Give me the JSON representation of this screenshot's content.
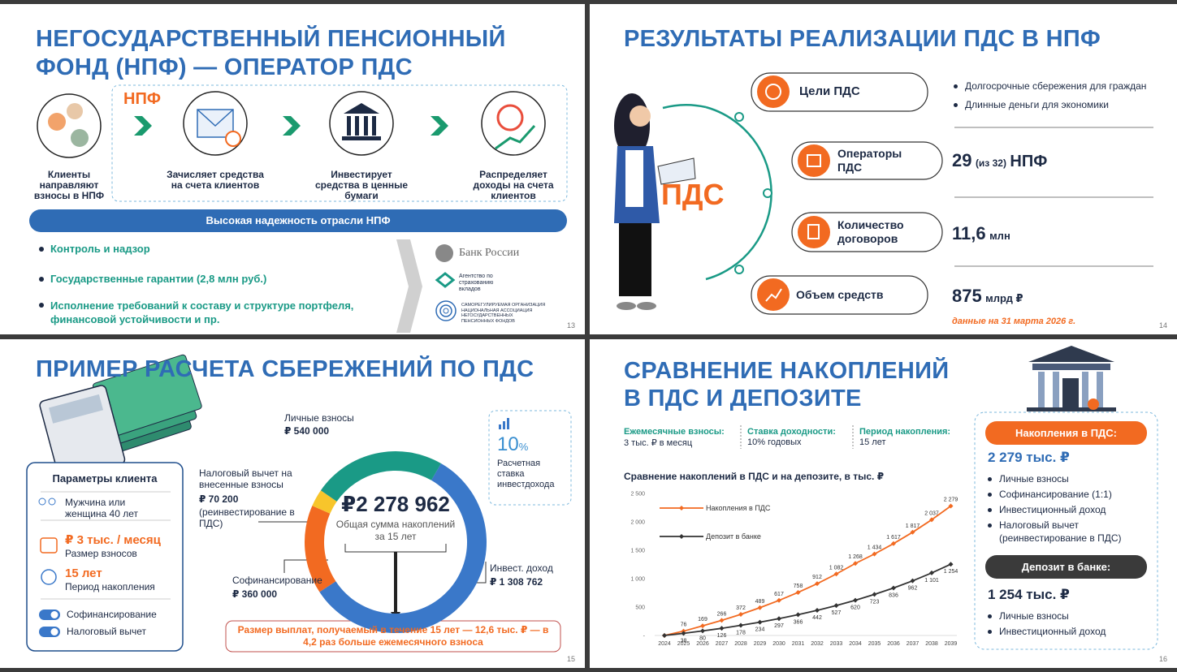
{
  "slides": [
    {
      "page": "13",
      "title_lines": [
        "НЕГОСУДАРСТВЕННЫЙ ПЕНСИОННЫЙ",
        "ФОНД (НПФ) — ОПЕРАТОР ПДС"
      ],
      "npf_label": "НПФ",
      "steps": [
        "Клиенты направляют взносы в НПФ",
        "Зачисляет средства на счета клиентов",
        "Инвестирует средства в ценные бумаги",
        "Распределяет доходы на счета клиентов"
      ],
      "banner": "Высокая надежность отрасли НПФ",
      "bullets": [
        "Контроль и надзор",
        "Государственные гарантии (2,8 млн руб.)",
        "Исполнение требований к составу и структуре портфеля, финансовой устойчивости и пр."
      ],
      "logos": [
        "Банк России",
        "Агентство по страхованию вкладов",
        "САМОРЕГУЛИРУЕМАЯ ОРГАНИЗАЦИЯ НАЦИОНАЛЬНАЯ АССОЦИАЦИЯ НЕГОСУДАРСТВЕННЫХ ПЕНСИОННЫХ ФОНДОВ"
      ]
    },
    {
      "page": "14",
      "title": "РЕЗУЛЬТАТЫ РЕАЛИЗАЦИИ ПДС В НПФ",
      "center_label": "ПДС",
      "items": [
        "Цели ПДС",
        "Операторы ПДС",
        "Количество договоров",
        "Объем средств"
      ],
      "goals": [
        "Долгосрочные сбережения для граждан",
        "Длинные деньги для экономики"
      ],
      "operators": {
        "number": "29",
        "note": "(из 32)",
        "unit": "НПФ"
      },
      "contracts": {
        "number": "11,6",
        "unit": "млн"
      },
      "assets": {
        "number": "875",
        "unit": "млрд ₽"
      },
      "note": "данные на 31 марта 2026 г."
    },
    {
      "page": "15",
      "title": "ПРИМЕР РАСЧЕТА СБЕРЕЖЕНИЙ ПО ПДС",
      "params_title": "Параметры клиента",
      "client": "Мужчина или женщина 40 лет",
      "contribution": "₽ 3 тыс. / месяц",
      "contribution_label": "Размер взносов",
      "period": "15 лет",
      "period_label": "Период накопления",
      "toggles": [
        "Софинансирование",
        "Налоговый вычет"
      ],
      "rate": "10",
      "rate_unit": "%",
      "rate_label": "Расчетная ставка инвестдохода",
      "footer": "Размер выплат, получаемый в течение 15 лет — 12,6 тыс. ₽ — в 4,2 раз больше ежемесячного взноса"
    },
    {
      "page": "16",
      "title_lines": [
        "СРАВНЕНИЕ НАКОПЛЕНИЙ",
        "В ПДС И ДЕПОЗИТЕ"
      ],
      "params": [
        {
          "label": "Ежемесячные взносы:",
          "value": "3 тыс. ₽ в месяц"
        },
        {
          "label": "Ставка доходности:",
          "value": "10% годовых"
        },
        {
          "label": "Период накопления:",
          "value": "15 лет"
        }
      ],
      "npf_box": {
        "title": "Накопления в ПДС:",
        "total": "2 279 тыс. ₽",
        "items": [
          "Личные взносы",
          "Софинансирование (1:1)",
          "Инвестиционный доход",
          "Налоговый вычет (реинвестирование в ПДС)"
        ]
      },
      "deposit_box": {
        "title": "Депозит в банке:",
        "total": "1 254 тыс. ₽",
        "items": [
          "Личные взносы",
          "Инвестиционный доход"
        ]
      }
    }
  ],
  "chart_data": [
    {
      "type": "donut",
      "total_label": "₽2 278 962",
      "center_text": "Общая сумма накоплений за 15 лет",
      "categories": [
        "Инвест. доход",
        "Софинансирование",
        "Налоговый вычет на внесенные взносы",
        "Личные взносы"
      ],
      "values": [
        1308762,
        360000,
        70200,
        540000
      ],
      "value_labels": [
        "₽ 1 308 762",
        "₽ 360 000",
        "₽ 70 200",
        "₽ 540 000"
      ],
      "colors": [
        "#3a78c9",
        "#f26a21",
        "#f7c52b",
        "#1a9a86"
      ],
      "annotation": "(реинвестирование в ПДС)"
    },
    {
      "type": "line",
      "title": "Сравнение накоплений в ПДС и на депозите, в тыс. ₽",
      "categories": [
        "2024",
        "2025",
        "2026",
        "2027",
        "2028",
        "2029",
        "2030",
        "2031",
        "2032",
        "2033",
        "2034",
        "2035",
        "2036",
        "2037",
        "2038",
        "2039"
      ],
      "series": [
        {
          "name": "Накопления в ПДС",
          "color": "#f26a21",
          "values": [
            0,
            76,
            169,
            266,
            372,
            489,
            617,
            758,
            912,
            1082,
            1268,
            1434,
            1617,
            1817,
            2037,
            2279
          ],
          "value_labels": [
            null,
            "76",
            "169",
            "266",
            "372",
            "489",
            "617",
            "758",
            "912",
            "1 082",
            "1 268",
            "1 434",
            "1 617",
            "1 817",
            "2 037",
            "2 279"
          ]
        },
        {
          "name": "Депозит в банке",
          "color": "#333333",
          "values": [
            0,
            38,
            80,
            126,
            178,
            234,
            297,
            366,
            442,
            527,
            620,
            723,
            836,
            962,
            1101,
            1254
          ],
          "value_labels": [
            null,
            "38",
            "80",
            "126",
            "178",
            "234",
            "297",
            "366",
            "442",
            "527",
            "620",
            "723",
            "836",
            "962",
            "1 101",
            "1 254"
          ]
        }
      ],
      "ylim": [
        0,
        2500
      ],
      "yticks": [
        {
          "value": 0,
          "label": "-"
        },
        500,
        {
          "value": 1000,
          "label": "1 000"
        },
        {
          "value": 1500,
          "label": "1 500"
        },
        {
          "value": 2000,
          "label": "2 000"
        },
        {
          "value": 2500,
          "label": "2 500"
        }
      ],
      "grid": false
    }
  ]
}
